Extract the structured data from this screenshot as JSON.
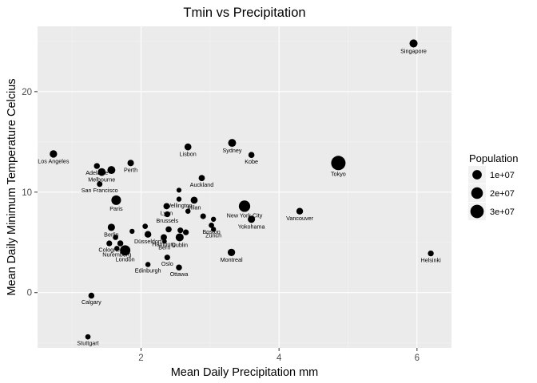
{
  "chart_data": {
    "type": "scatter",
    "title": "Tmin vs Precipitation",
    "xlabel": "Mean Daily Precipitation mm",
    "ylabel": "Mean Daily Minimum Temperature Celcius",
    "xlim": [
      0.5,
      6.5
    ],
    "ylim": [
      -5.5,
      26.5
    ],
    "x_ticks": [
      2,
      4,
      6
    ],
    "y_ticks": [
      0,
      10,
      20
    ],
    "grid": true,
    "point_color": "#000000",
    "panel_color": "#ebebeb",
    "legend": {
      "title": "Population",
      "placement": "right",
      "entries": [
        {
          "label": "1e+07",
          "value": 10000000
        },
        {
          "label": "2e+07",
          "value": 20000000
        },
        {
          "label": "3e+07",
          "value": 30000000
        }
      ]
    },
    "points": [
      {
        "label": "Singapore",
        "x": 5.95,
        "y": 24.8,
        "population": 5600000
      },
      {
        "label": "Tokyo",
        "x": 4.86,
        "y": 12.9,
        "population": 37000000
      },
      {
        "label": "Los Angeles",
        "x": 0.73,
        "y": 13.8,
        "population": 4000000
      },
      {
        "label": "Perth",
        "x": 1.85,
        "y": 12.9,
        "population": 2100000
      },
      {
        "label": "Adelaide",
        "x": 1.36,
        "y": 12.6,
        "population": 1300000
      },
      {
        "label": "Melbourne",
        "x": 1.43,
        "y": 12.0,
        "population": 4900000
      },
      {
        "label": "",
        "x": 1.57,
        "y": 12.2,
        "population": 5300000
      },
      {
        "label": "San Francisco",
        "x": 1.4,
        "y": 10.8,
        "population": 880000
      },
      {
        "label": "Paris",
        "x": 1.64,
        "y": 9.2,
        "population": 11000000
      },
      {
        "label": "Lisbon",
        "x": 2.68,
        "y": 14.5,
        "population": 2900000
      },
      {
        "label": "Sydney",
        "x": 3.32,
        "y": 14.9,
        "population": 5300000
      },
      {
        "label": "Kobe",
        "x": 3.6,
        "y": 13.7,
        "population": 1500000
      },
      {
        "label": "Auckland",
        "x": 2.88,
        "y": 11.4,
        "population": 1700000
      },
      {
        "label": "",
        "x": 2.55,
        "y": 10.2,
        "population": 300000
      },
      {
        "label": "Wellington",
        "x": 2.55,
        "y": 9.3,
        "population": 400000
      },
      {
        "label": "Milan",
        "x": 2.77,
        "y": 9.2,
        "population": 3100000
      },
      {
        "label": "Lyon",
        "x": 2.37,
        "y": 8.6,
        "population": 1700000
      },
      {
        "label": "",
        "x": 2.68,
        "y": 8.1,
        "population": 500000
      },
      {
        "label": "New York City",
        "x": 3.5,
        "y": 8.6,
        "population": 18800000
      },
      {
        "label": "Vancouver",
        "x": 4.3,
        "y": 8.1,
        "population": 2500000
      },
      {
        "label": "Yokohama",
        "x": 3.6,
        "y": 7.3,
        "population": 3700000
      },
      {
        "label": "Brussels",
        "x": 2.38,
        "y": 7.8,
        "population": 1200000
      },
      {
        "label": "",
        "x": 2.9,
        "y": 7.6,
        "population": 1000000
      },
      {
        "label": "",
        "x": 3.05,
        "y": 7.3,
        "population": 400000
      },
      {
        "label": "Boston",
        "x": 3.02,
        "y": 6.7,
        "population": 700000
      },
      {
        "label": "Berlin",
        "x": 1.57,
        "y": 6.5,
        "population": 3600000
      },
      {
        "label": "",
        "x": 2.06,
        "y": 6.6,
        "population": 600000
      },
      {
        "label": "",
        "x": 1.87,
        "y": 6.1,
        "population": 400000
      },
      {
        "label": "Düsseldorf",
        "x": 2.1,
        "y": 5.8,
        "population": 2600000
      },
      {
        "label": "",
        "x": 2.4,
        "y": 6.3,
        "population": 1500000
      },
      {
        "label": "",
        "x": 2.57,
        "y": 6.2,
        "population": 1000000
      },
      {
        "label": "",
        "x": 2.65,
        "y": 6.0,
        "population": 1100000
      },
      {
        "label": "Zürich",
        "x": 3.05,
        "y": 6.3,
        "population": 400000
      },
      {
        "label": "Dublin",
        "x": 2.56,
        "y": 5.5,
        "population": 5500000
      },
      {
        "label": "Hamburg",
        "x": 2.33,
        "y": 5.5,
        "population": 1800000
      },
      {
        "label": "",
        "x": 1.63,
        "y": 5.5,
        "population": 600000
      },
      {
        "label": "Bern",
        "x": 2.34,
        "y": 5.1,
        "population": 130000
      },
      {
        "label": "Cologne",
        "x": 1.54,
        "y": 4.9,
        "population": 1100000
      },
      {
        "label": "",
        "x": 1.7,
        "y": 4.9,
        "population": 1400000
      },
      {
        "label": "Nuremberg",
        "x": 1.65,
        "y": 4.4,
        "population": 500000
      },
      {
        "label": "London",
        "x": 1.77,
        "y": 4.2,
        "population": 14000000
      },
      {
        "label": "Montreal",
        "x": 3.31,
        "y": 4.0,
        "population": 4100000
      },
      {
        "label": "Oslo",
        "x": 2.38,
        "y": 3.5,
        "population": 1000000
      },
      {
        "label": "Helsinki",
        "x": 6.2,
        "y": 3.9,
        "population": 1200000
      },
      {
        "label": "Edinburgh",
        "x": 2.1,
        "y": 2.8,
        "population": 500000
      },
      {
        "label": "Ottawa",
        "x": 2.55,
        "y": 2.5,
        "population": 1400000
      },
      {
        "label": "Calgary",
        "x": 1.28,
        "y": -0.3,
        "population": 1300000
      },
      {
        "label": "Stuttgart",
        "x": 1.23,
        "y": -4.4,
        "population": 600000
      }
    ]
  }
}
